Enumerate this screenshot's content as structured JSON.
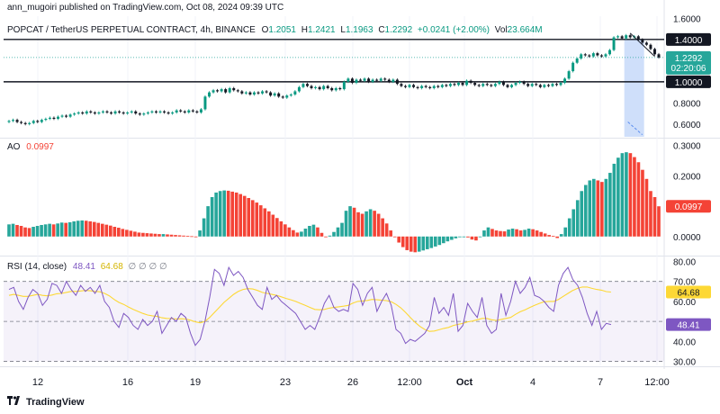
{
  "publisher": "ann_mugoiri published on TradingView.com, Oct 08, 2024 09:39 UTC",
  "main": {
    "symbol": "POPCAT / TetherUS PERPETUAL CONTRACT, 4h, BINANCE",
    "o_label": "O",
    "o": "1.2051",
    "h_label": "H",
    "h": "1.2421",
    "l_label": "L",
    "l": "1.1963",
    "c_label": "C",
    "c": "1.2292",
    "change": "+0.0241 (+2.00%)",
    "vol_label": "Vol",
    "vol": "23.664M",
    "price_tag": "1.2292",
    "countdown": "02:20:06",
    "line_tag_1": "1.4000",
    "line_tag_2": "1.0000"
  },
  "ao": {
    "label": "AO",
    "value": "0.0997"
  },
  "rsi": {
    "label": "RSI (14, close)",
    "value": "48.41",
    "ma_value": "64.68",
    "extra": "∅ ∅ ∅ ∅"
  },
  "footer": {
    "brand": "TradingView"
  },
  "colors": {
    "up": "#26a69a",
    "down": "#ef5350",
    "rsi_line": "#7e57c2",
    "rsi_ma": "#fdd835",
    "ao_red": "#f44336",
    "ao_green": "#26a69a"
  },
  "chart_data": [
    {
      "type": "candlestick",
      "title": "POPCAT / TetherUS PERPETUAL CONTRACT, 4h, BINANCE",
      "x_ticks": [
        "12",
        "16",
        "19",
        "23",
        "26",
        "12:00",
        "Oct",
        "4",
        "7",
        "12:00"
      ],
      "y_ticks": [
        "1.6000",
        "1.4000",
        "1.2000",
        "1.0000",
        "0.8000",
        "0.6000"
      ],
      "ylim": [
        0.48,
        1.62
      ],
      "horizontal_lines": [
        1.4,
        1.0
      ],
      "closes": [
        0.63,
        0.64,
        0.62,
        0.61,
        0.6,
        0.61,
        0.63,
        0.62,
        0.64,
        0.65,
        0.66,
        0.65,
        0.67,
        0.68,
        0.67,
        0.69,
        0.7,
        0.71,
        0.7,
        0.72,
        0.71,
        0.7,
        0.71,
        0.72,
        0.71,
        0.7,
        0.72,
        0.71,
        0.7,
        0.71,
        0.72,
        0.7,
        0.69,
        0.7,
        0.71,
        0.72,
        0.71,
        0.72,
        0.71,
        0.7,
        0.71,
        0.73,
        0.72,
        0.71,
        0.73,
        0.72,
        0.71,
        0.74,
        0.86,
        0.9,
        0.92,
        0.91,
        0.93,
        0.9,
        0.94,
        0.92,
        0.91,
        0.89,
        0.9,
        0.88,
        0.9,
        0.89,
        0.91,
        0.9,
        0.87,
        0.89,
        0.86,
        0.85,
        0.87,
        0.88,
        0.91,
        0.95,
        0.98,
        0.96,
        0.94,
        0.95,
        0.93,
        0.96,
        0.94,
        0.92,
        0.94,
        0.93,
        1.0,
        1.03,
        0.99,
        1.02,
        1.01,
        1.03,
        1.0,
        1.02,
        1.01,
        1.03,
        1.02,
        1.0,
        1.02,
        0.98,
        0.96,
        0.95,
        0.97,
        0.95,
        0.94,
        0.96,
        0.95,
        0.94,
        0.96,
        0.95,
        0.97,
        0.96,
        0.98,
        0.97,
        0.99,
        0.97,
        1.01,
        0.99,
        0.97,
        0.96,
        0.98,
        0.97,
        0.96,
        0.98,
        1.0,
        0.97,
        0.95,
        0.97,
        0.99,
        1.0,
        0.98,
        0.96,
        0.98,
        0.97,
        0.95,
        0.97,
        0.96,
        0.98,
        0.97,
        0.99,
        1.03,
        1.1,
        1.18,
        1.22,
        1.26,
        1.25,
        1.24,
        1.27,
        1.25,
        1.24,
        1.26,
        1.3,
        1.42,
        1.43,
        1.41,
        1.44,
        1.42,
        1.43,
        1.4,
        1.37,
        1.35,
        1.31,
        1.26,
        1.23
      ]
    },
    {
      "type": "bar",
      "title": "AO",
      "y_ticks": [
        "0.3000",
        "0.2000",
        "0.0000"
      ],
      "ylim": [
        -0.06,
        0.32
      ],
      "values": [
        0.04,
        0.042,
        0.038,
        0.035,
        0.03,
        0.028,
        0.032,
        0.035,
        0.038,
        0.04,
        0.042,
        0.04,
        0.043,
        0.046,
        0.045,
        0.047,
        0.05,
        0.052,
        0.053,
        0.052,
        0.05,
        0.048,
        0.045,
        0.042,
        0.039,
        0.036,
        0.032,
        0.029,
        0.025,
        0.022,
        0.019,
        0.016,
        0.013,
        0.012,
        0.011,
        0.01,
        0.009,
        0.008,
        0.008,
        0.007,
        0.006,
        0.005,
        0.004,
        0.003,
        0.002,
        0.001,
        0.0,
        0.02,
        0.06,
        0.1,
        0.13,
        0.145,
        0.15,
        0.152,
        0.151,
        0.148,
        0.145,
        0.14,
        0.134,
        0.127,
        0.12,
        0.112,
        0.103,
        0.093,
        0.083,
        0.072,
        0.061,
        0.05,
        0.04,
        0.03,
        0.021,
        0.013,
        0.016,
        0.026,
        0.035,
        0.039,
        0.03,
        0.012,
        -0.002,
        0.003,
        0.015,
        0.03,
        0.045,
        0.085,
        0.1,
        0.095,
        0.08,
        0.075,
        0.083,
        0.09,
        0.085,
        0.075,
        0.06,
        0.043,
        0.02,
        0.0,
        -0.02,
        -0.035,
        -0.045,
        -0.05,
        -0.052,
        -0.05,
        -0.046,
        -0.042,
        -0.038,
        -0.033,
        -0.028,
        -0.022,
        -0.016,
        -0.011,
        -0.006,
        -0.002,
        0.0,
        -0.003,
        -0.01,
        -0.013,
        0.0,
        0.02,
        0.03,
        0.025,
        0.02,
        0.018,
        0.017,
        0.023,
        0.026,
        0.024,
        0.02,
        0.022,
        0.026,
        0.024,
        0.02,
        0.015,
        0.01,
        0.005,
        0.002,
        -0.005,
        0.008,
        0.03,
        0.06,
        0.09,
        0.12,
        0.15,
        0.17,
        0.185,
        0.19,
        0.185,
        0.18,
        0.19,
        0.21,
        0.24,
        0.26,
        0.275,
        0.278,
        0.275,
        0.262,
        0.245,
        0.22,
        0.19,
        0.15,
        0.13,
        0.0997
      ]
    },
    {
      "type": "line",
      "title": "RSI (14, close)",
      "y_ticks": [
        "80.00",
        "70.00",
        "60.00",
        "50.00",
        "40.00",
        "30.00"
      ],
      "ylim": [
        28,
        82
      ],
      "bands": [
        70,
        50,
        30
      ],
      "series": [
        {
          "name": "RSI",
          "values": [
            66,
            67,
            60,
            56,
            62,
            66,
            64,
            58,
            61,
            69,
            68,
            64,
            70,
            66,
            63,
            68,
            65,
            67,
            64,
            68,
            60,
            57,
            50,
            47,
            54,
            52,
            48,
            46,
            51,
            48,
            50,
            55,
            44,
            48,
            52,
            50,
            54,
            52,
            44,
            38,
            41,
            50,
            62,
            76,
            74,
            68,
            77,
            73,
            75,
            72,
            66,
            62,
            58,
            56,
            67,
            61,
            63,
            60,
            58,
            56,
            54,
            50,
            46,
            48,
            46,
            52,
            59,
            63,
            57,
            55,
            56,
            55,
            69,
            66,
            58,
            64,
            67,
            55,
            60,
            64,
            58,
            46,
            44,
            39,
            41,
            40,
            42,
            44,
            48,
            62,
            54,
            57,
            53,
            64,
            45,
            48,
            59,
            55,
            52,
            62,
            48,
            44,
            46,
            64,
            53,
            60,
            70,
            64,
            67,
            72,
            63,
            62,
            60,
            57,
            55,
            68,
            74,
            77,
            71,
            68,
            62,
            54,
            48,
            55,
            46,
            49,
            48.41
          ]
        },
        {
          "name": "RSI-based MA",
          "values": [
            63,
            63.5,
            63,
            62.5,
            62.5,
            63,
            63.5,
            63,
            62.8,
            63.2,
            63.8,
            64,
            64.5,
            65,
            65,
            65.2,
            65.5,
            65.3,
            65,
            64.8,
            64,
            62.8,
            61,
            59.5,
            58.5,
            57.2,
            56,
            55,
            54,
            53.2,
            52.8,
            52.5,
            51.8,
            51.5,
            51.4,
            51.2,
            51.3,
            51.2,
            50.6,
            49.8,
            49.3,
            50,
            52,
            54.5,
            57,
            59.5,
            61.5,
            63.5,
            65,
            66,
            66.4,
            66.2,
            65.5,
            64.5,
            64,
            63.5,
            63,
            62.3,
            61.5,
            60.8,
            60,
            59,
            58,
            57,
            56,
            55.8,
            56,
            56.6,
            57,
            57.3,
            57.6,
            58,
            59.2,
            60,
            60.2,
            60.5,
            61,
            60.8,
            60.6,
            60.4,
            59.8,
            58.5,
            56.8,
            54.5,
            52,
            49.5,
            47.5,
            46,
            45,
            45.2,
            45.8,
            46.5,
            47,
            48,
            48.5,
            49,
            49.8,
            50.2,
            50.8,
            51.5,
            51.5,
            50.8,
            50.5,
            51,
            51.5,
            52,
            53.5,
            54.8,
            55.8,
            57,
            58,
            59,
            59.8,
            60,
            60,
            61,
            62.5,
            64,
            65.5,
            66.5,
            67.2,
            67.2,
            66.5,
            66,
            65.6,
            64.9,
            64.68
          ]
        }
      ]
    }
  ]
}
